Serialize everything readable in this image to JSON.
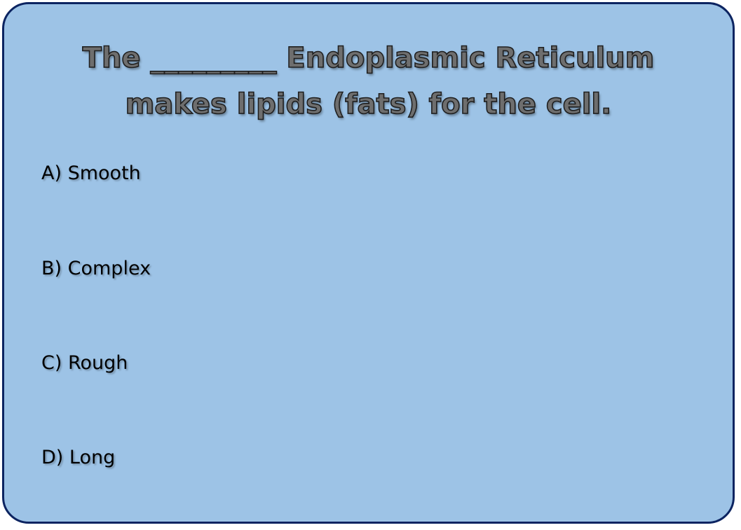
{
  "question": {
    "line1": "The _________ Endoplasmic Reticulum",
    "line2": "makes lipids (fats) for the cell."
  },
  "options": [
    {
      "label": "A) Smooth"
    },
    {
      "label": "B) Complex"
    },
    {
      "label": "C) Rough"
    },
    {
      "label": "D) Long"
    }
  ],
  "colors": {
    "card_background": "#9dc3e6",
    "card_border": "#0c2461",
    "question_text": "#6e6e6e"
  }
}
